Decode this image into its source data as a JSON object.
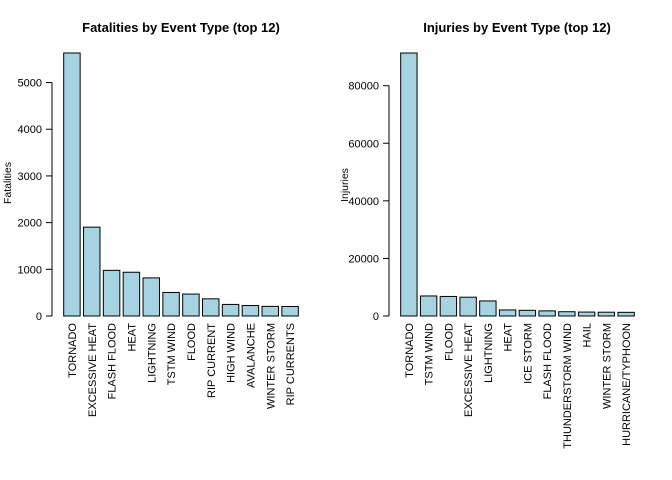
{
  "colors": {
    "bar_fill": "#a6d3e2",
    "bar_stroke": "#000000",
    "background": "#ffffff"
  },
  "chart_data": [
    {
      "type": "bar",
      "title": "Fatalities by Event Type (top 12)",
      "xlabel": "",
      "ylabel": "Fatalities",
      "ylim": [
        0,
        5633
      ],
      "yticks": [
        0,
        1000,
        2000,
        3000,
        4000,
        5000
      ],
      "ytick_labels": [
        "0",
        "1000",
        "2000",
        "3000",
        "4000",
        "5000"
      ],
      "categories": [
        "TORNADO",
        "EXCESSIVE HEAT",
        "FLASH FLOOD",
        "HEAT",
        "LIGHTNING",
        "TSTM WIND",
        "FLOOD",
        "RIP CURRENT",
        "HIGH WIND",
        "AVALANCHE",
        "WINTER STORM",
        "RIP CURRENTS"
      ],
      "values": [
        5633,
        1903,
        978,
        937,
        816,
        504,
        470,
        368,
        248,
        224,
        206,
        204
      ],
      "grid": false,
      "legend": "none"
    },
    {
      "type": "bar",
      "title": "Injuries by Event Type (top 12)",
      "xlabel": "",
      "ylabel": "Injuries",
      "ylim": [
        0,
        91346
      ],
      "yticks": [
        0,
        20000,
        40000,
        60000,
        80000
      ],
      "ytick_labels": [
        "0",
        "20000",
        "40000",
        "60000",
        "80000"
      ],
      "categories": [
        "TORNADO",
        "TSTM WIND",
        "FLOOD",
        "EXCESSIVE HEAT",
        "LIGHTNING",
        "HEAT",
        "ICE STORM",
        "FLASH FLOOD",
        "THUNDERSTORM WIND",
        "HAIL",
        "WINTER STORM",
        "HURRICANE/TYPHOON"
      ],
      "values": [
        91346,
        6957,
        6789,
        6525,
        5230,
        2100,
        1975,
        1777,
        1488,
        1361,
        1321,
        1275
      ],
      "grid": false,
      "legend": "none"
    }
  ]
}
